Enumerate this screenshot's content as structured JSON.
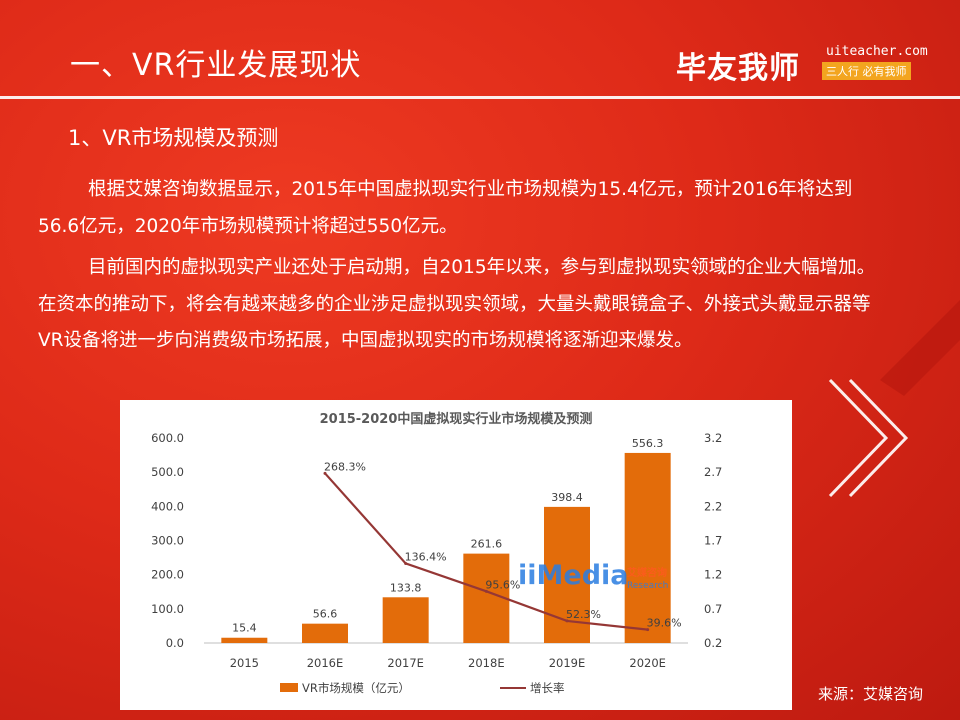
{
  "header": {
    "title": "一、VR行业发展现状",
    "logo_text": "毕友我师",
    "logo_url": "uiteacher.com",
    "logo_tagline": "三人行 必有我师"
  },
  "section": {
    "subtitle": "1、VR市场规模及预测",
    "paragraphs": [
      "根据艾媒咨询数据显示，2015年中国虚拟现实行业市场规模为15.4亿元，预计2016年将达到56.6亿元，2020年市场规模预计将超过550亿元。",
      "目前国内的虚拟现实产业还处于启动期，自2015年以来，参与到虚拟现实领域的企业大幅增加。在资本的推动下，将会有越来越多的企业涉足虚拟现实领域，大量头戴眼镜盒子、外接式头戴显示器等VR设备将进一步向消费级市场拓展，中国虚拟现实的市场规模将逐渐迎来爆发。"
    ]
  },
  "source": "来源：艾媒咨询",
  "watermark": {
    "brand": "iiMedia",
    "cn": "艾媒咨询",
    "en": "Research"
  },
  "chart_data": {
    "type": "bar",
    "title": "2015-2020中国虚拟现实行业市场规模及预测",
    "categories": [
      "2015",
      "2016E",
      "2017E",
      "2018E",
      "2019E",
      "2020E"
    ],
    "series": [
      {
        "name": "VR市场规模（亿元）",
        "type": "bar",
        "axis": "left",
        "values": [
          15.4,
          56.6,
          133.8,
          261.6,
          398.4,
          556.3
        ],
        "labels": [
          "15.4",
          "56.6",
          "133.8",
          "261.6",
          "398.4",
          "556.3"
        ],
        "color": "#e36c0a"
      },
      {
        "name": "增长率",
        "type": "line",
        "axis": "right",
        "values": [
          null,
          2.683,
          1.364,
          0.956,
          0.523,
          0.396
        ],
        "labels": [
          "",
          "268.3%",
          "136.4%",
          "95.6%",
          "52.3%",
          "39.6%"
        ],
        "color": "#953735"
      }
    ],
    "y_left": {
      "range": [
        0,
        600
      ],
      "ticks": [
        0,
        100,
        200,
        300,
        400,
        500,
        600
      ],
      "tick_labels": [
        "0.0",
        "100.0",
        "200.0",
        "300.0",
        "400.0",
        "500.0",
        "600.0"
      ]
    },
    "y_right": {
      "range": [
        0.2,
        3.2
      ],
      "ticks": [
        0.2,
        0.7,
        1.2,
        1.7,
        2.2,
        2.7,
        3.2
      ],
      "tick_labels": [
        "0.2",
        "0.7",
        "1.2",
        "1.7",
        "2.2",
        "2.7",
        "3.2"
      ]
    },
    "grid": false,
    "legend": "bottom"
  }
}
